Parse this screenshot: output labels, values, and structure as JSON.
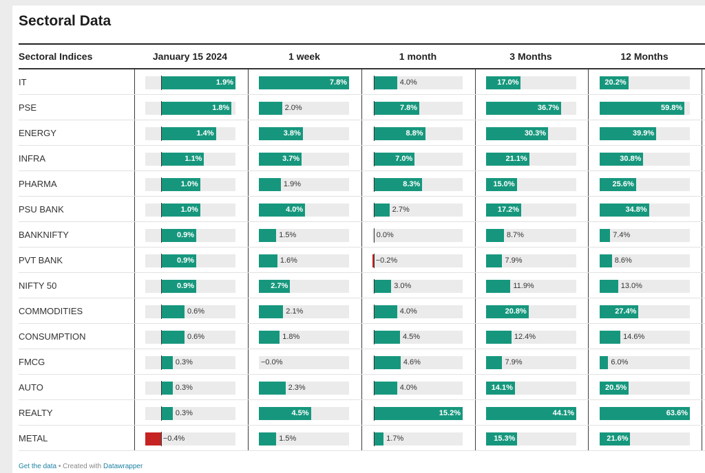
{
  "title": "Sectoral Data",
  "footer": {
    "get_data": "Get the data",
    "created_with": "• Created with",
    "brand": "Datawrapper"
  },
  "chart_data": {
    "type": "table",
    "columns": [
      {
        "label": "January 15 2024",
        "min": -0.4,
        "max": 1.9
      },
      {
        "label": "1 week",
        "min": -0.0,
        "max": 7.8
      },
      {
        "label": "1 month",
        "min": -0.2,
        "max": 15.2
      },
      {
        "label": "3 Months",
        "min": 0,
        "max": 44.1
      },
      {
        "label": "12 Months",
        "min": 0,
        "max": 63.6
      }
    ],
    "row_header": "Sectoral Indices",
    "unit": "%",
    "colors": {
      "positive": "#16977d",
      "negative": "#c62323",
      "track": "#ebebeb"
    },
    "rows": [
      {
        "name": "IT",
        "values": [
          "1.9",
          "7.8",
          "4.0",
          "17.0",
          "20.2"
        ]
      },
      {
        "name": "PSE",
        "values": [
          "1.8",
          "2.0",
          "7.8",
          "36.7",
          "59.8"
        ]
      },
      {
        "name": "ENERGY",
        "values": [
          "1.4",
          "3.8",
          "8.8",
          "30.3",
          "39.9"
        ]
      },
      {
        "name": "INFRA",
        "values": [
          "1.1",
          "3.7",
          "7.0",
          "21.1",
          "30.8"
        ]
      },
      {
        "name": "PHARMA",
        "values": [
          "1.0",
          "1.9",
          "8.3",
          "15.0",
          "25.6"
        ]
      },
      {
        "name": "PSU BANK",
        "values": [
          "1.0",
          "4.0",
          "2.7",
          "17.2",
          "34.8"
        ]
      },
      {
        "name": "BANKNIFTY",
        "values": [
          "0.9",
          "1.5",
          "0.0",
          "8.7",
          "7.4"
        ]
      },
      {
        "name": "PVT BANK",
        "values": [
          "0.9",
          "1.6",
          "-0.2",
          "7.9",
          "8.6"
        ]
      },
      {
        "name": "NIFTY 50",
        "values": [
          "0.9",
          "2.7",
          "3.0",
          "11.9",
          "13.0"
        ]
      },
      {
        "name": "COMMODITIES",
        "values": [
          "0.6",
          "2.1",
          "4.0",
          "20.8",
          "27.4"
        ]
      },
      {
        "name": "CONSUMPTION",
        "values": [
          "0.6",
          "1.8",
          "4.5",
          "12.4",
          "14.6"
        ]
      },
      {
        "name": "FMCG",
        "values": [
          "0.3",
          "-0.0",
          "4.6",
          "7.9",
          "6.0"
        ]
      },
      {
        "name": "AUTO",
        "values": [
          "0.3",
          "2.3",
          "4.0",
          "14.1",
          "20.5"
        ]
      },
      {
        "name": "REALTY",
        "values": [
          "0.3",
          "4.5",
          "15.2",
          "44.1",
          "63.6"
        ]
      },
      {
        "name": "METAL",
        "values": [
          "-0.4",
          "1.5",
          "1.7",
          "15.3",
          "21.6"
        ]
      }
    ]
  }
}
